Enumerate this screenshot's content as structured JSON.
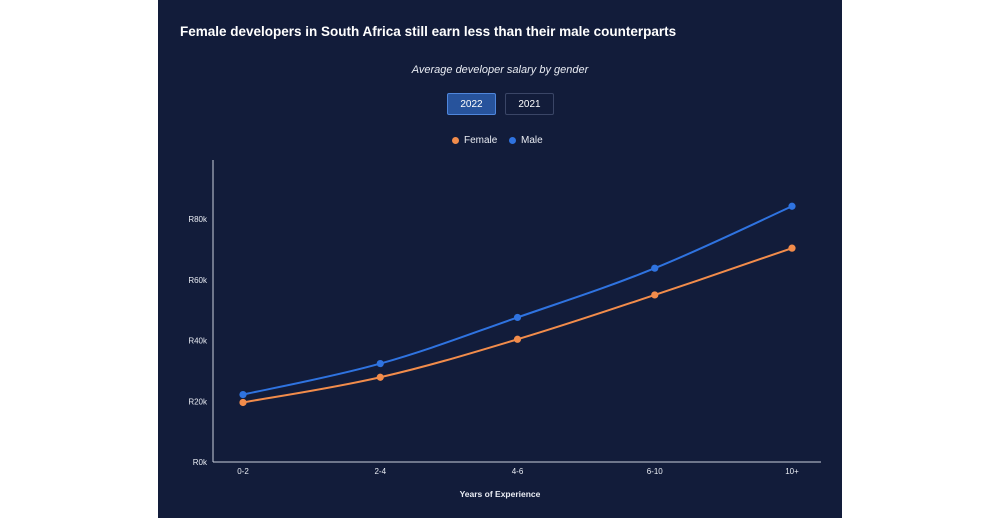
{
  "chart_data": {
    "type": "line",
    "title": "Female developers in South Africa still earn less than their male counterparts",
    "subtitle": "Average developer salary by gender",
    "xlabel": "Years of Experience",
    "ylabel": "",
    "categories": [
      "0-2",
      "2-4",
      "4-6",
      "6-10",
      "10+"
    ],
    "yticks": [
      {
        "value": 0,
        "label": "R0k"
      },
      {
        "value": 20000,
        "label": "R20k"
      },
      {
        "value": 40000,
        "label": "R40k"
      },
      {
        "value": 60000,
        "label": "R60k"
      },
      {
        "value": 80000,
        "label": "R80k"
      }
    ],
    "ylim": [
      0,
      100000
    ],
    "series": [
      {
        "name": "Female",
        "color": "#f28c4b",
        "values": [
          19600,
          27900,
          40400,
          55000,
          70400
        ]
      },
      {
        "name": "Male",
        "color": "#2f73e0",
        "values": [
          22200,
          32400,
          47600,
          63800,
          84200
        ]
      }
    ],
    "legend_position": "top-center",
    "grid": false
  },
  "tabs": [
    {
      "label": "2022",
      "active": true
    },
    {
      "label": "2021",
      "active": false
    }
  ],
  "colors": {
    "background": "#121c3a",
    "female": "#f28c4b",
    "male": "#2f73e0",
    "active_tab": "#27539c"
  }
}
